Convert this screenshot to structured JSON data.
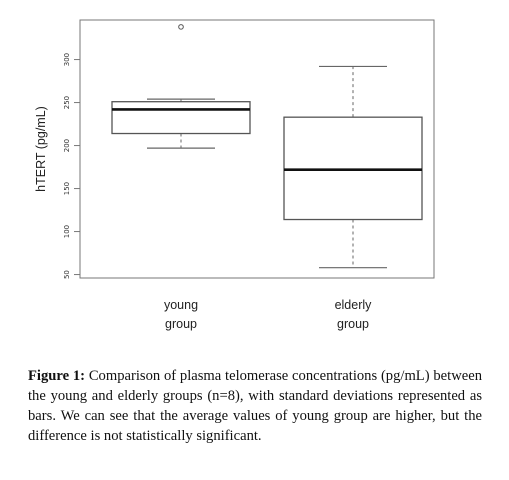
{
  "chart_data": {
    "type": "boxplot",
    "ylabel": "hTERT (pg/mL)",
    "ylim": [
      46,
      346
    ],
    "yticks": [
      50,
      100,
      150,
      200,
      250,
      300
    ],
    "categories": [
      {
        "line1": "young",
        "line2": "group"
      },
      {
        "line1": "elderly",
        "line2": "group"
      }
    ],
    "boxes": [
      {
        "name": "young group",
        "whisker_low": 197,
        "q1": 214,
        "median": 242,
        "q3": 251,
        "whisker_high": 254,
        "outliers": [
          338
        ]
      },
      {
        "name": "elderly group",
        "whisker_low": 58,
        "q1": 114,
        "median": 172,
        "q3": 233,
        "whisker_high": 292,
        "outliers": []
      }
    ],
    "colors": {
      "box_fill": "#ffffff",
      "box_stroke": "#555555",
      "median": "#111111",
      "frame": "#777777"
    }
  },
  "caption": {
    "lead": "Figure 1:",
    "text": " Comparison of plasma telomerase concentrations (pg/mL) between the young and elderly groups (n=8), with standard deviations represented as bars. We can see that the average values of young group are higher, but the difference is not statistically significant."
  }
}
